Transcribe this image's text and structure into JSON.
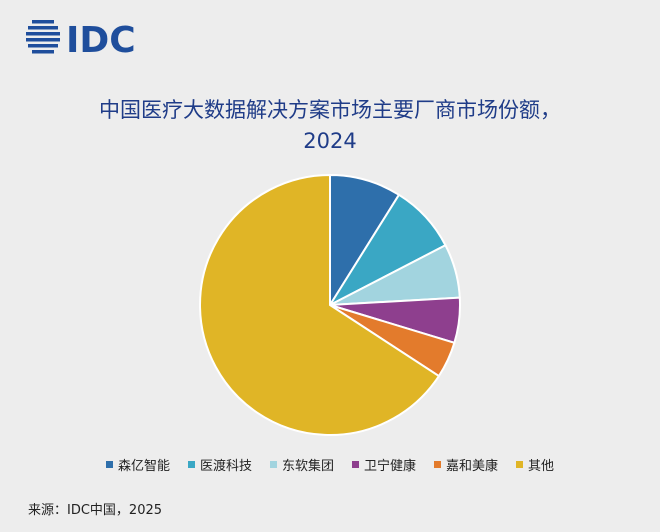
{
  "logo_text": "IDC",
  "title_line1": "中国医疗大数据解决方案市场主要厂商市场份额，",
  "title_line2": "2024",
  "source": "来源：IDC中国，2025",
  "colors": {
    "brand": "#1f4e9c",
    "title": "#1f3c88"
  },
  "chart_data": {
    "type": "pie",
    "title": "中国医疗大数据解决方案市场主要厂商市场份额，2024",
    "legend_position": "bottom",
    "start_angle_deg": 0,
    "direction": "clockwise",
    "slices": [
      {
        "label": "森亿智能",
        "value": 8.9,
        "color": "#2e6fab"
      },
      {
        "label": "医渡科技",
        "value": 8.5,
        "color": "#3aa7c4"
      },
      {
        "label": "东软集团",
        "value": 6.7,
        "color": "#a2d4df"
      },
      {
        "label": "卫宁健康",
        "value": 5.6,
        "color": "#8e3f8e"
      },
      {
        "label": "嘉和美康",
        "value": 4.5,
        "color": "#e37b2c"
      },
      {
        "label": "其他",
        "value": 65.8,
        "color": "#e0b526"
      }
    ]
  }
}
